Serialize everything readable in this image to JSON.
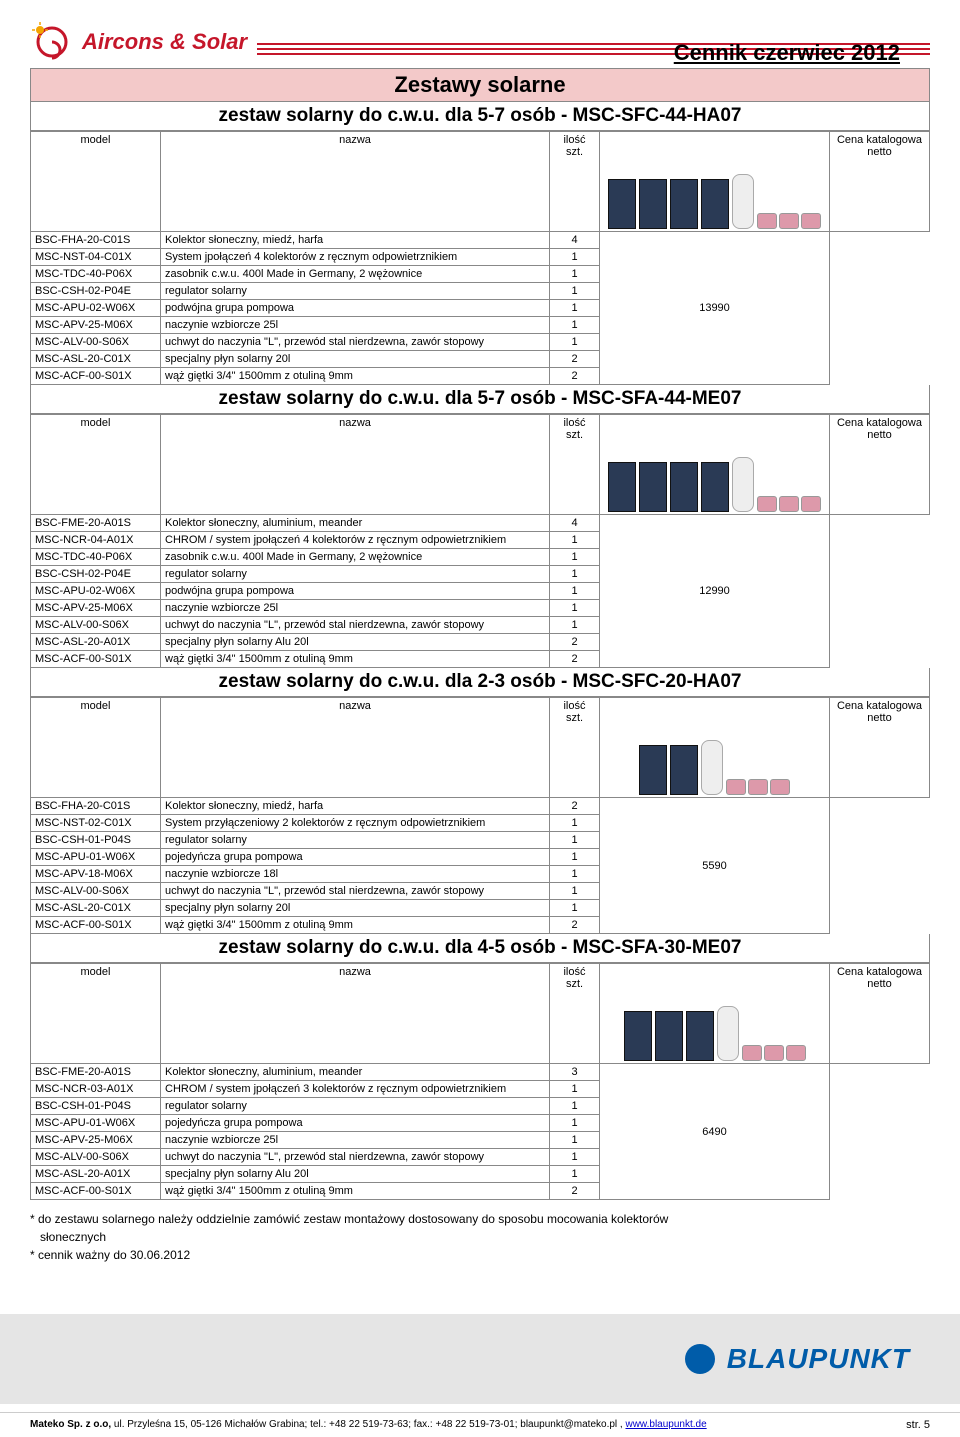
{
  "header": {
    "logo_text": "Aircons & Solar",
    "title": "Cennik czerwiec 2012",
    "accent_color": "#c5162a"
  },
  "main_title": "Zestawy solarne",
  "sections": [
    {
      "title": "zestaw solarny do c.w.u. dla 5-7 osób - MSC-SFC-44-HA07",
      "price": "13990",
      "panel_count": 4,
      "rows": [
        {
          "m": "BSC-FHA-20-C01S",
          "n": "Kolektor słoneczny, miedź, harfa",
          "q": "4"
        },
        {
          "m": "MSC-NST-04-C01X",
          "n": "System jpołączeń 4 kolektorów z ręcznym odpowietrznikiem",
          "q": "1"
        },
        {
          "m": "MSC-TDC-40-P06X",
          "n": "zasobnik c.w.u. 400l Made in Germany, 2 wężownice",
          "q": "1"
        },
        {
          "m": "BSC-CSH-02-P04E",
          "n": "regulator solarny",
          "q": "1"
        },
        {
          "m": "MSC-APU-02-W06X",
          "n": "podwójna grupa pompowa",
          "q": "1"
        },
        {
          "m": "MSC-APV-25-M06X",
          "n": "naczynie wzbiorcze 25l",
          "q": "1"
        },
        {
          "m": "MSC-ALV-00-S06X",
          "n": "uchwyt do naczynia \"L\", przewód stal nierdzewna, zawór stopowy",
          "q": "1"
        },
        {
          "m": "MSC-ASL-20-C01X",
          "n": "specjalny płyn solarny 20l",
          "q": "2"
        },
        {
          "m": "MSC-ACF-00-S01X",
          "n": "wąż giętki 3/4\" 1500mm z otuliną 9mm",
          "q": "2"
        }
      ]
    },
    {
      "title": "zestaw solarny do c.w.u. dla 5-7 osób - MSC-SFA-44-ME07",
      "price": "12990",
      "panel_count": 4,
      "rows": [
        {
          "m": "BSC-FME-20-A01S",
          "n": "Kolektor słoneczny, aluminium, meander",
          "q": "4"
        },
        {
          "m": "MSC-NCR-04-A01X",
          "n": "CHROM / system jpołączeń 4 kolektorów z ręcznym odpowietrznikiem",
          "q": "1"
        },
        {
          "m": "MSC-TDC-40-P06X",
          "n": "zasobnik c.w.u. 400l Made in Germany, 2 wężownice",
          "q": "1"
        },
        {
          "m": "BSC-CSH-02-P04E",
          "n": "regulator solarny",
          "q": "1"
        },
        {
          "m": "MSC-APU-02-W06X",
          "n": "podwójna grupa pompowa",
          "q": "1"
        },
        {
          "m": "MSC-APV-25-M06X",
          "n": "naczynie wzbiorcze 25l",
          "q": "1"
        },
        {
          "m": "MSC-ALV-00-S06X",
          "n": "uchwyt do naczynia \"L\", przewód stal nierdzewna, zawór stopowy",
          "q": "1"
        },
        {
          "m": "MSC-ASL-20-A01X",
          "n": "specjalny płyn solarny Alu 20l",
          "q": "2"
        },
        {
          "m": "MSC-ACF-00-S01X",
          "n": "wąż giętki 3/4\" 1500mm z otuliną 9mm",
          "q": "2"
        }
      ]
    },
    {
      "title": "zestaw solarny do c.w.u. dla 2-3 osób - MSC-SFC-20-HA07",
      "price": "5590",
      "panel_count": 2,
      "rows": [
        {
          "m": "BSC-FHA-20-C01S",
          "n": "Kolektor słoneczny, miedź, harfa",
          "q": "2"
        },
        {
          "m": "MSC-NST-02-C01X",
          "n": "System przyłączeniowy 2 kolektorów z ręcznym odpowietrznikiem",
          "q": "1"
        },
        {
          "m": "BSC-CSH-01-P04S",
          "n": "regulator solarny",
          "q": "1"
        },
        {
          "m": "MSC-APU-01-W06X",
          "n": "pojedyńcza grupa pompowa",
          "q": "1"
        },
        {
          "m": "MSC-APV-18-M06X",
          "n": "naczynie wzbiorcze 18l",
          "q": "1"
        },
        {
          "m": "MSC-ALV-00-S06X",
          "n": "uchwyt do naczynia \"L\", przewód stal nierdzewna, zawór stopowy",
          "q": "1"
        },
        {
          "m": "MSC-ASL-20-C01X",
          "n": "specjalny płyn solarny 20l",
          "q": "1"
        },
        {
          "m": "MSC-ACF-00-S01X",
          "n": "wąż giętki 3/4\" 1500mm z otuliną 9mm",
          "q": "2"
        }
      ]
    },
    {
      "title": "zestaw solarny do c.w.u. dla 4-5 osób - MSC-SFA-30-ME07",
      "price": "6490",
      "panel_count": 3,
      "rows": [
        {
          "m": "BSC-FME-20-A01S",
          "n": "Kolektor słoneczny, aluminium, meander",
          "q": "3"
        },
        {
          "m": "MSC-NCR-03-A01X",
          "n": "CHROM / system jpołączeń 3 kolektorów z ręcznym odpowietrznikiem",
          "q": "1"
        },
        {
          "m": "BSC-CSH-01-P04S",
          "n": "regulator solarny",
          "q": "1"
        },
        {
          "m": "MSC-APU-01-W06X",
          "n": "pojedyńcza grupa pompowa",
          "q": "1"
        },
        {
          "m": "MSC-APV-25-M06X",
          "n": "naczynie wzbiorcze 25l",
          "q": "1"
        },
        {
          "m": "MSC-ALV-00-S06X",
          "n": "uchwyt do naczynia \"L\", przewód stal nierdzewna, zawór stopowy",
          "q": "1"
        },
        {
          "m": "MSC-ASL-20-A01X",
          "n": "specjalny płyn solarny Alu 20l",
          "q": "1"
        },
        {
          "m": "MSC-ACF-00-S01X",
          "n": "wąż giętki 3/4\" 1500mm z otuliną 9mm",
          "q": "2"
        }
      ]
    }
  ],
  "column_headers": {
    "model": "model",
    "name": "nazwa",
    "qty_line1": "ilość",
    "qty_line2": "szt.",
    "price_line1": "Cena katalogowa",
    "price_line2": "netto"
  },
  "footnotes": {
    "line1": "* do zestawu solarnego należy oddzielnie zamówić zestaw montażowy dostosowany do sposobu mocowania kolektorów",
    "line1b": "słonecznych",
    "line2": "* cennik ważny do 30.06.2012"
  },
  "brand": {
    "name": "BLAUPUNKT",
    "dot_color": "#005ca9"
  },
  "footer": {
    "text_prefix": "Mateko Sp. z o.o, ",
    "text_rest": "ul. Przyleśna 15, 05-126 Michałów Grabina; tel.: +48 22 519-73-63; fax.: +48 22 519-73-01; blaupunkt@mateko.pl , ",
    "link": "www.blaupunkt.de",
    "page": "str. 5"
  }
}
